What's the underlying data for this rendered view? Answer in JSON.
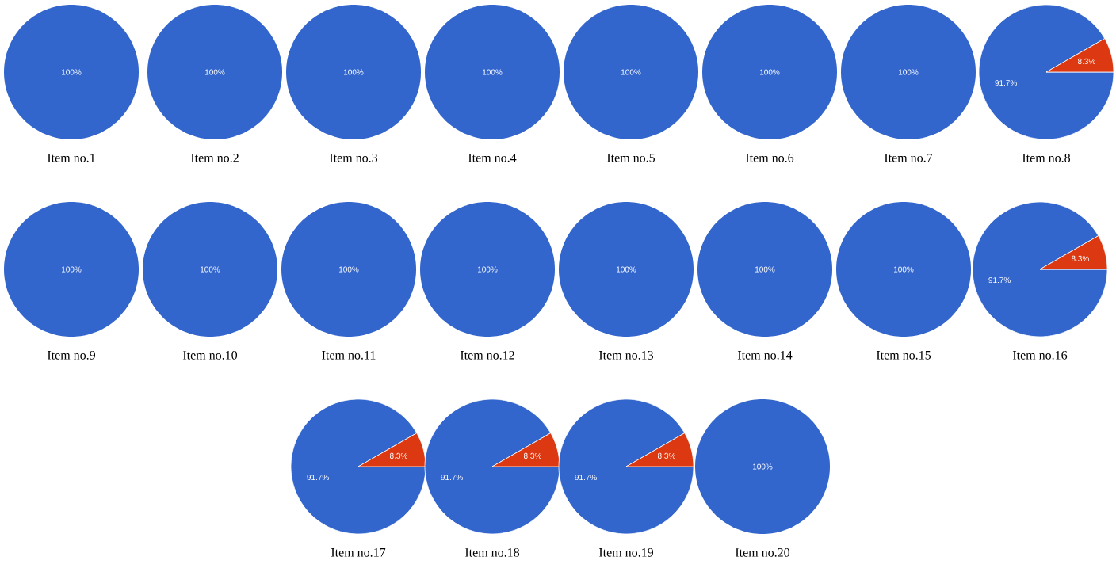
{
  "chart_data": [
    {
      "type": "pie",
      "title": "Item no.1",
      "categories": [
        null
      ],
      "values": [
        100
      ],
      "colors": [
        "#3366cc"
      ],
      "value_labels": [
        "100%"
      ]
    },
    {
      "type": "pie",
      "title": "Item no.2",
      "categories": [
        null
      ],
      "values": [
        100
      ],
      "colors": [
        "#3366cc"
      ],
      "value_labels": [
        "100%"
      ]
    },
    {
      "type": "pie",
      "title": "Item no.3",
      "categories": [
        null
      ],
      "values": [
        100
      ],
      "colors": [
        "#3366cc"
      ],
      "value_labels": [
        "100%"
      ]
    },
    {
      "type": "pie",
      "title": "Item no.4",
      "categories": [
        null
      ],
      "values": [
        100
      ],
      "colors": [
        "#3366cc"
      ],
      "value_labels": [
        "100%"
      ]
    },
    {
      "type": "pie",
      "title": "Item no.5",
      "categories": [
        null
      ],
      "values": [
        100
      ],
      "colors": [
        "#3366cc"
      ],
      "value_labels": [
        "100%"
      ]
    },
    {
      "type": "pie",
      "title": "Item no.6",
      "categories": [
        null
      ],
      "values": [
        100
      ],
      "colors": [
        "#3366cc"
      ],
      "value_labels": [
        "100%"
      ]
    },
    {
      "type": "pie",
      "title": "Item no.7",
      "categories": [
        null
      ],
      "values": [
        100
      ],
      "colors": [
        "#3366cc"
      ],
      "value_labels": [
        "100%"
      ]
    },
    {
      "type": "pie",
      "title": "Item no.8",
      "categories": [
        null,
        null
      ],
      "values": [
        91.7,
        8.3
      ],
      "colors": [
        "#3366cc",
        "#dc3912"
      ],
      "value_labels": [
        "91.7%",
        "8.3%"
      ]
    },
    {
      "type": "pie",
      "title": "Item no.9",
      "categories": [
        null
      ],
      "values": [
        100
      ],
      "colors": [
        "#3366cc"
      ],
      "value_labels": [
        "100%"
      ]
    },
    {
      "type": "pie",
      "title": "Item no.10",
      "categories": [
        null
      ],
      "values": [
        100
      ],
      "colors": [
        "#3366cc"
      ],
      "value_labels": [
        "100%"
      ]
    },
    {
      "type": "pie",
      "title": "Item no.11",
      "categories": [
        null
      ],
      "values": [
        100
      ],
      "colors": [
        "#3366cc"
      ],
      "value_labels": [
        "100%"
      ]
    },
    {
      "type": "pie",
      "title": "Item no.12",
      "categories": [
        null
      ],
      "values": [
        100
      ],
      "colors": [
        "#3366cc"
      ],
      "value_labels": [
        "100%"
      ]
    },
    {
      "type": "pie",
      "title": "Item no.13",
      "categories": [
        null
      ],
      "values": [
        100
      ],
      "colors": [
        "#3366cc"
      ],
      "value_labels": [
        "100%"
      ]
    },
    {
      "type": "pie",
      "title": "Item no.14",
      "categories": [
        null
      ],
      "values": [
        100
      ],
      "colors": [
        "#3366cc"
      ],
      "value_labels": [
        "100%"
      ]
    },
    {
      "type": "pie",
      "title": "Item no.15",
      "categories": [
        null
      ],
      "values": [
        100
      ],
      "colors": [
        "#3366cc"
      ],
      "value_labels": [
        "100%"
      ]
    },
    {
      "type": "pie",
      "title": "Item no.16",
      "categories": [
        null,
        null
      ],
      "values": [
        91.7,
        8.3
      ],
      "colors": [
        "#3366cc",
        "#dc3912"
      ],
      "value_labels": [
        "91.7%",
        "8.3%"
      ]
    },
    {
      "type": "pie",
      "title": "Item no.17",
      "categories": [
        null,
        null
      ],
      "values": [
        91.7,
        8.3
      ],
      "colors": [
        "#3366cc",
        "#dc3912"
      ],
      "value_labels": [
        "91.7%",
        "8.3%"
      ]
    },
    {
      "type": "pie",
      "title": "Item no.18",
      "categories": [
        null,
        null
      ],
      "values": [
        91.7,
        8.3
      ],
      "colors": [
        "#3366cc",
        "#dc3912"
      ],
      "value_labels": [
        "91.7%",
        "8.3%"
      ]
    },
    {
      "type": "pie",
      "title": "Item no.19",
      "categories": [
        null,
        null
      ],
      "values": [
        91.7,
        8.3
      ],
      "colors": [
        "#3366cc",
        "#dc3912"
      ],
      "value_labels": [
        "91.7%",
        "8.3%"
      ]
    },
    {
      "type": "pie",
      "title": "Item no.20",
      "categories": [
        null
      ],
      "values": [
        100
      ],
      "colors": [
        "#3366cc"
      ],
      "value_labels": [
        "100%"
      ]
    }
  ]
}
